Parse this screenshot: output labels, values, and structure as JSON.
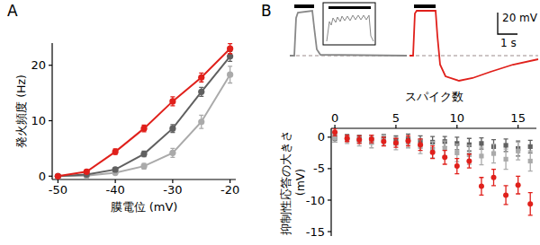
{
  "chart_data": [
    {
      "type": "line",
      "title": "A",
      "xlabel": "膜電位 (mV)",
      "ylabel": "発火頻度 (Hz)",
      "x": [
        -50,
        -45,
        -40,
        -35,
        -30,
        -25,
        -20
      ],
      "xlim": [
        -51,
        -19
      ],
      "xticks": [
        -50,
        -40,
        -30,
        -20
      ],
      "ylim": [
        -0.6,
        24
      ],
      "yticks": [
        0,
        10,
        20
      ],
      "marker": "circle",
      "series": [
        {
          "color": "#aaaaaa",
          "values": [
            0,
            0.1,
            0.6,
            1.8,
            4.2,
            9.8,
            18.3
          ],
          "errors": [
            0.1,
            0.2,
            0.3,
            0.5,
            0.8,
            1.2,
            1.5
          ]
        },
        {
          "color": "#606060",
          "values": [
            0,
            0.3,
            1.2,
            4.0,
            8.6,
            15.2,
            21.6
          ],
          "errors": [
            0.1,
            0.2,
            0.3,
            0.5,
            0.7,
            0.8,
            0.9
          ]
        },
        {
          "color": "#e0201b",
          "values": [
            0,
            0.8,
            4.4,
            8.6,
            13.5,
            17.8,
            23.0
          ],
          "errors": [
            0.1,
            0.3,
            0.5,
            0.6,
            0.8,
            0.8,
            0.9
          ]
        }
      ]
    },
    {
      "type": "scatter",
      "title": "B",
      "xlabel": "スパイク数",
      "ylabel": "抑制性応答の大きさ (mV)",
      "annotations": [
        "20 mV",
        "1 s"
      ],
      "x": [
        0,
        1,
        2,
        3,
        4,
        5,
        6,
        7,
        8,
        9,
        10,
        11,
        12,
        13,
        14,
        15,
        16
      ],
      "xlim": [
        -0.3,
        16.5
      ],
      "xticks": [
        0,
        5,
        10,
        15
      ],
      "ylim": [
        -15.7,
        1.4
      ],
      "yticks": [
        0,
        -5,
        -10,
        -15
      ],
      "series": [
        {
          "color": "#606060",
          "marker": "square",
          "values": [
            -0.2,
            -0.1,
            -0.3,
            -0.4,
            -0.2,
            -0.5,
            -0.3,
            -0.6,
            -0.8,
            -0.7,
            -1.0,
            -1.2,
            -1.0,
            -1.5,
            -1.3,
            -1.8,
            -1.5
          ],
          "errors": [
            0.6,
            0.5,
            0.6,
            0.7,
            0.6,
            0.7,
            0.8,
            0.8,
            0.9,
            0.8,
            1.0,
            1.0,
            0.9,
            1.1,
            1.0,
            1.2,
            1.0
          ]
        },
        {
          "color": "#aaaaaa",
          "marker": "square",
          "values": [
            -0.1,
            -0.4,
            -0.6,
            -0.8,
            -0.5,
            -1.0,
            -0.8,
            -1.5,
            -2.0,
            -1.8,
            -2.5,
            -2.8,
            -3.0,
            -2.6,
            -3.5,
            -2.2,
            -3.8
          ],
          "errors": [
            0.7,
            0.6,
            0.8,
            0.9,
            0.8,
            1.0,
            0.9,
            1.1,
            1.3,
            1.2,
            1.4,
            1.5,
            1.4,
            1.5,
            1.6,
            1.4,
            1.6
          ]
        },
        {
          "color": "#e0201b",
          "marker": "circle",
          "values": [
            0.8,
            -0.2,
            -0.4,
            -0.3,
            -0.7,
            -0.9,
            -0.6,
            -1.2,
            -2.4,
            -3.2,
            -4.6,
            -3.8,
            -7.8,
            -6.4,
            -9.2,
            -7.6,
            -10.6
          ],
          "errors": [
            0.6,
            0.5,
            0.6,
            0.6,
            0.7,
            0.7,
            0.8,
            0.9,
            1.0,
            1.1,
            1.2,
            1.1,
            1.4,
            1.3,
            1.5,
            1.4,
            1.8
          ]
        }
      ]
    }
  ]
}
